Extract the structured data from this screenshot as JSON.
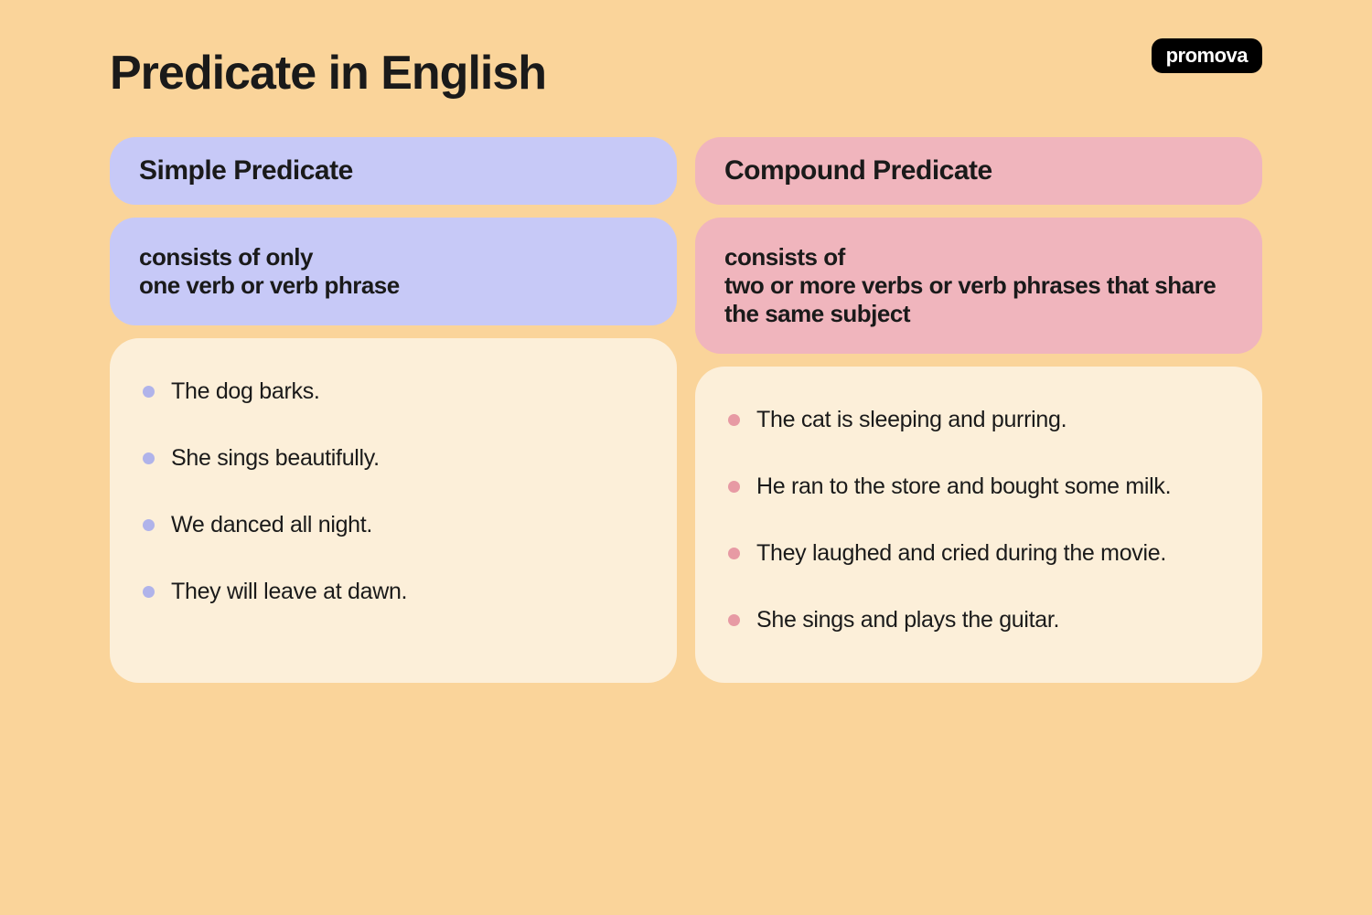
{
  "brand": "promova",
  "title": "Predicate in English",
  "colors": {
    "background": "#fad49a",
    "examples_bg": "#fcefd9",
    "simple_bg": "#c7c9f7",
    "simple_bullet": "#b0b3ea",
    "compound_bg": "#f0b5bd",
    "compound_bullet": "#e79aa4",
    "text": "#1a1a1a",
    "logo_bg": "#000000",
    "logo_text": "#ffffff"
  },
  "typography": {
    "title_fontsize": 52,
    "header_fontsize": 30,
    "desc_fontsize": 26,
    "example_fontsize": 25,
    "font_family": "sans-serif"
  },
  "layout": {
    "card_radius": 28,
    "examples_radius": 32,
    "column_gap": 20
  },
  "simple": {
    "heading": "Simple Predicate",
    "desc_intro": "consists of only",
    "desc_bold": "one verb or verb phrase",
    "examples": [
      "The dog barks.",
      "She sings beautifully.",
      "We danced all night.",
      "They will leave at dawn."
    ]
  },
  "compound": {
    "heading": "Compound Predicate",
    "desc_intro": "consists of",
    "desc_bold": "two or more verbs or verb phrases that share the same subject",
    "examples": [
      "The cat is sleeping and purring.",
      "He ran to the store and bought some milk.",
      "They laughed and cried during the movie.",
      "She sings and plays the guitar."
    ]
  }
}
